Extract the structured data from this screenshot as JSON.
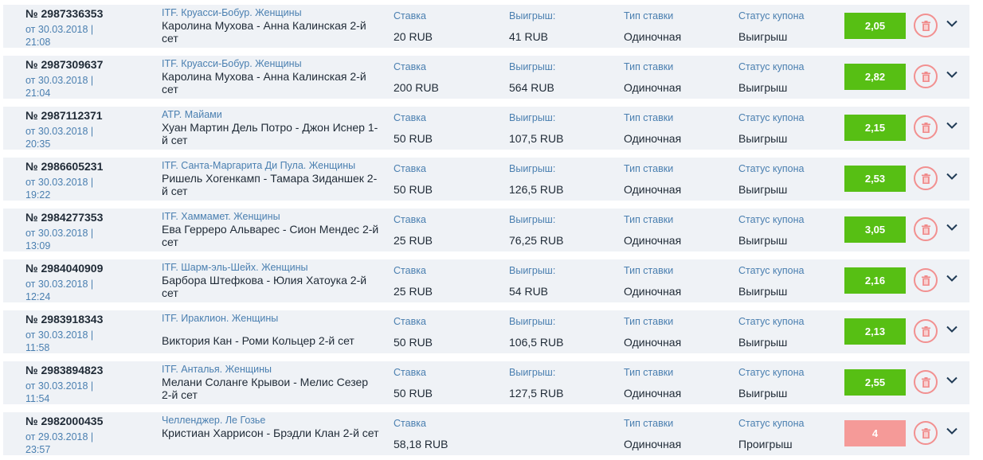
{
  "colors": {
    "win": "#57bf14",
    "loss": "#f59a98",
    "accent": "#4a7fb0"
  },
  "labels": {
    "stake": "Ставка",
    "win": "Выигрыш:",
    "bet_type": "Тип ставки",
    "status": "Статус купона"
  },
  "coupons": [
    {
      "number": "№ 2987336353",
      "date": "от 30.03.2018 | 21:08",
      "league": "ITF. Круасси-Бобур. Женщины",
      "event": "Каролина Мухова - Анна Калинская 2-й сет",
      "stake": "20 RUB",
      "win": "41 RUB",
      "bet_type": "Одиночная",
      "status": "Выигрыш",
      "odds": "2,05",
      "result": "win"
    },
    {
      "number": "№ 2987309637",
      "date": "от 30.03.2018 | 21:04",
      "league": "ITF. Круасси-Бобур. Женщины",
      "event": "Каролина Мухова - Анна Калинская 2-й сет",
      "stake": "200 RUB",
      "win": "564 RUB",
      "bet_type": "Одиночная",
      "status": "Выигрыш",
      "odds": "2,82",
      "result": "win"
    },
    {
      "number": "№ 2987112371",
      "date": "от 30.03.2018 | 20:35",
      "league": "ATP. Майами",
      "event": "Хуан Мартин Дель Потро - Джон Иснер 1-й сет",
      "stake": "50 RUB",
      "win": "107,5 RUB",
      "bet_type": "Одиночная",
      "status": "Выигрыш",
      "odds": "2,15",
      "result": "win"
    },
    {
      "number": "№ 2986605231",
      "date": "от 30.03.2018 | 19:22",
      "league": "ITF. Санта-Маргарита Ди Пула. Женщины",
      "event": "Ришель Хогенкамп - Тамара Зиданшек 2-й сет",
      "stake": "50 RUB",
      "win": "126,5 RUB",
      "bet_type": "Одиночная",
      "status": "Выигрыш",
      "odds": "2,53",
      "result": "win"
    },
    {
      "number": "№ 2984277353",
      "date": "от 30.03.2018 | 13:09",
      "league": "ITF. Хаммамет. Женщины",
      "event": "Ева Герреро Альварес - Сион Мендес 2-й сет",
      "stake": "25 RUB",
      "win": "76,25 RUB",
      "bet_type": "Одиночная",
      "status": "Выигрыш",
      "odds": "3,05",
      "result": "win"
    },
    {
      "number": "№ 2984040909",
      "date": "от 30.03.2018 | 12:24",
      "league": "ITF. Шарм-эль-Шейх. Женщины",
      "event": "Барбора Штефкова - Юлия Хатоука 2-й сет",
      "stake": "25 RUB",
      "win": "54 RUB",
      "bet_type": "Одиночная",
      "status": "Выигрыш",
      "odds": "2,16",
      "result": "win"
    },
    {
      "number": "№ 2983918343",
      "date": "от 30.03.2018 | 11:58",
      "league": "ITF. Ираклион. Женщины",
      "event": "Виктория Кан - Роми Кольцер 2-й сет",
      "stake": "50 RUB",
      "win": "106,5 RUB",
      "bet_type": "Одиночная",
      "status": "Выигрыш",
      "odds": "2,13",
      "result": "win",
      "one_line": true
    },
    {
      "number": "№ 2983894823",
      "date": "от 30.03.2018 | 11:54",
      "league": "ITF. Анталья. Женщины",
      "event": "Мелани Соланге Крывои - Мелис Сезер 2-й сет",
      "stake": "50 RUB",
      "win": "127,5 RUB",
      "bet_type": "Одиночная",
      "status": "Выигрыш",
      "odds": "2,55",
      "result": "win"
    },
    {
      "number": "№ 2982000435",
      "date": "от 29.03.2018 | 23:57",
      "league": "Челленджер. Ле Гозье",
      "event": "Кристиан Харрисон - Брэдли Клан 2-й сет",
      "stake": "58,18 RUB",
      "bet_type": "Одиночная",
      "status": "Проигрыш",
      "odds": "4",
      "result": "loss"
    }
  ]
}
